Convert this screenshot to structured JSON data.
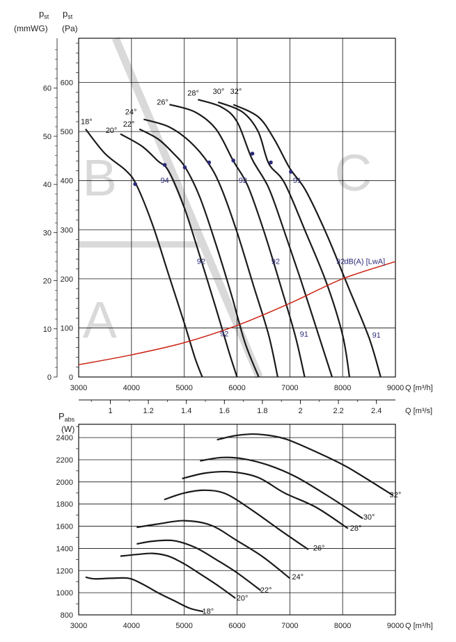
{
  "top_chart": {
    "ylabel_left_main": "p",
    "ylabel_left_sub": "st",
    "ylabel_left_unit": "(mmWG)",
    "ylabel_right_main": "p",
    "ylabel_right_sub": "st",
    "ylabel_right_unit": "(Pa)",
    "xlabel_m3h": "Q [m³/h]",
    "xlabel_m3s": "Q [m³/s]",
    "region_labels": [
      "A",
      "B",
      "C"
    ],
    "dba_label": "dB(A) [LwA]"
  },
  "bottom_chart": {
    "ylabel_main": "P",
    "ylabel_sub": "abs",
    "ylabel_unit": "(W)",
    "xlabel": "Q [m³/h]"
  },
  "colors": {
    "curve": "#1a1a1a",
    "system_curve": "#cc2211",
    "region": "#d9d9d9",
    "marker": "#2b2b7a",
    "label": "#2b2b7a"
  },
  "chart_data": [
    {
      "type": "line",
      "title": "",
      "xlabel": "Q [m³/h]",
      "ylabel": "pst (Pa)",
      "xlim": [
        3000,
        9000
      ],
      "ylim": [
        0,
        690
      ],
      "x_ticks": [
        3000,
        4000,
        5000,
        6000,
        7000,
        8000,
        9000
      ],
      "y_ticks_pa": [
        0,
        100,
        200,
        300,
        400,
        500,
        600
      ],
      "y_ticks_mmwg": [
        0,
        10,
        20,
        30,
        40,
        50,
        60
      ],
      "secondary_x_ticks_m3s": [
        "1",
        "1.2",
        "1.4",
        "1.6",
        "1.8",
        "2",
        "2.2",
        "2.4"
      ],
      "grid": true,
      "series": [
        {
          "name": "18°",
          "x": [
            3130,
            3500,
            3900,
            4100,
            4400,
            4700,
            5000,
            5200,
            5340
          ],
          "y": [
            505,
            455,
            420,
            390,
            310,
            210,
            110,
            40,
            0
          ]
        },
        {
          "name": "20°",
          "x": [
            3790,
            4200,
            4500,
            4700,
            5000,
            5300,
            5600,
            5850,
            6000
          ],
          "y": [
            495,
            470,
            440,
            420,
            345,
            245,
            140,
            50,
            0
          ]
        },
        {
          "name": "22°",
          "x": [
            4150,
            4500,
            4800,
            5030,
            5300,
            5600,
            5900,
            6150,
            6410
          ],
          "y": [
            505,
            485,
            455,
            425,
            365,
            270,
            165,
            70,
            0
          ]
        },
        {
          "name": "24°",
          "x": [
            4230,
            4700,
            5100,
            5460,
            5700,
            6000,
            6300,
            6600,
            6770
          ],
          "y": [
            525,
            510,
            480,
            435,
            385,
            295,
            190,
            85,
            0
          ]
        },
        {
          "name": "26°",
          "x": [
            4720,
            5200,
            5600,
            5930,
            6200,
            6500,
            6800,
            7100,
            7280
          ],
          "y": [
            555,
            540,
            505,
            440,
            390,
            300,
            195,
            85,
            0
          ]
        },
        {
          "name": "28°",
          "x": [
            5260,
            5700,
            6000,
            6280,
            6600,
            6900,
            7200,
            7500,
            7800
          ],
          "y": [
            565,
            550,
            520,
            445,
            385,
            295,
            200,
            100,
            0
          ]
        },
        {
          "name": "30°",
          "x": [
            5640,
            6100,
            6400,
            6600,
            6900,
            7300,
            7700,
            8000,
            8130
          ],
          "y": [
            560,
            540,
            500,
            435,
            395,
            295,
            190,
            85,
            0
          ]
        },
        {
          "name": "32°",
          "x": [
            5930,
            6400,
            6700,
            7000,
            7300,
            7700,
            8100,
            8500,
            8720
          ],
          "y": [
            555,
            530,
            485,
            425,
            380,
            290,
            185,
            80,
            0
          ]
        },
        {
          "name": "system",
          "x": [
            3000,
            4000,
            5000,
            6000,
            7000,
            8000,
            9000
          ],
          "y": [
            25,
            45,
            70,
            105,
            150,
            200,
            235
          ]
        }
      ],
      "curve_labels": [
        "18°",
        "20°",
        "22°",
        "24°",
        "26°",
        "28°",
        "30°",
        "32°"
      ],
      "noise_labels": [
        "94",
        "92",
        "92",
        "92",
        "92",
        "91",
        "91",
        "91",
        "92"
      ]
    },
    {
      "type": "line",
      "title": "",
      "xlabel": "Q [m³/h]",
      "ylabel": "Pabs (W)",
      "xlim": [
        3000,
        9000
      ],
      "ylim": [
        800,
        2520
      ],
      "x_ticks": [
        3000,
        4000,
        5000,
        6000,
        7000,
        8000,
        9000
      ],
      "y_ticks": [
        800,
        1000,
        1200,
        1400,
        1600,
        1800,
        2000,
        2200,
        2400
      ],
      "grid": true,
      "series": [
        {
          "name": "18°",
          "x": [
            3130,
            3300,
            3600,
            3950,
            4200,
            4500,
            4800,
            5100,
            5360
          ],
          "y": [
            1140,
            1125,
            1130,
            1130,
            1080,
            1000,
            930,
            860,
            830
          ]
        },
        {
          "name": "20°",
          "x": [
            3790,
            4100,
            4400,
            4700,
            5000,
            5300,
            5650,
            5970
          ],
          "y": [
            1330,
            1345,
            1355,
            1330,
            1260,
            1170,
            1060,
            950
          ]
        },
        {
          "name": "22°",
          "x": [
            4100,
            4400,
            4800,
            5200,
            5600,
            6000,
            6450
          ],
          "y": [
            1440,
            1465,
            1470,
            1410,
            1300,
            1180,
            1020
          ]
        },
        {
          "name": "24°",
          "x": [
            4100,
            4500,
            5000,
            5500,
            6000,
            6500,
            7000
          ],
          "y": [
            1590,
            1620,
            1650,
            1610,
            1470,
            1320,
            1130
          ]
        },
        {
          "name": "26°",
          "x": [
            4620,
            5000,
            5400,
            5800,
            6300,
            6800,
            7350
          ],
          "y": [
            1840,
            1900,
            1925,
            1890,
            1740,
            1570,
            1390
          ]
        },
        {
          "name": "28°",
          "x": [
            4960,
            5400,
            5900,
            6400,
            6900,
            7500,
            8100
          ],
          "y": [
            2030,
            2080,
            2090,
            2040,
            1900,
            1770,
            1580
          ]
        },
        {
          "name": "30°",
          "x": [
            5300,
            5700,
            6100,
            6600,
            7100,
            7700,
            8380
          ],
          "y": [
            2190,
            2220,
            2210,
            2150,
            2050,
            1880,
            1670
          ]
        },
        {
          "name": "32°",
          "x": [
            5620,
            6000,
            6400,
            6900,
            7500,
            8100,
            8950
          ],
          "y": [
            2380,
            2420,
            2430,
            2390,
            2270,
            2130,
            1880
          ]
        }
      ]
    }
  ]
}
